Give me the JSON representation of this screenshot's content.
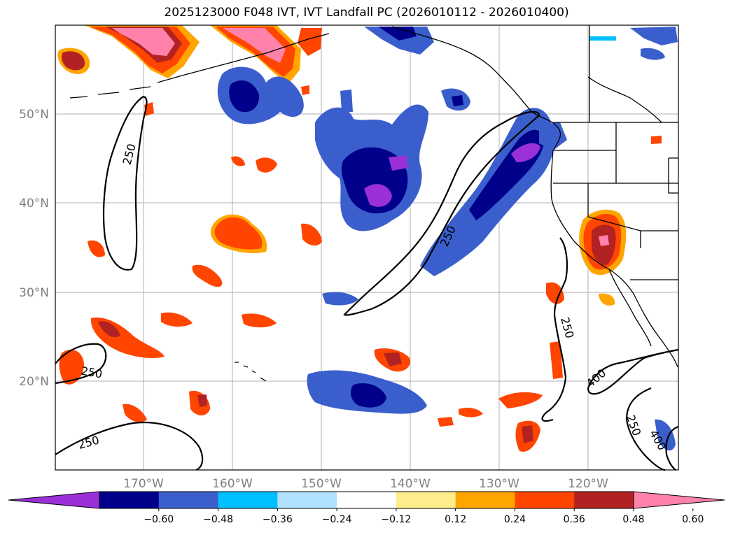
{
  "title": "2025123000 F048 IVT, IVT Landfall PC (2026010112 - 2026010400)",
  "map": {
    "lat_ticks": [
      "50°N",
      "40°N",
      "30°N",
      "20°N"
    ],
    "lon_ticks": [
      "170°W",
      "160°W",
      "150°W",
      "140°W",
      "130°W",
      "120°W"
    ],
    "contour_labels": [
      "250",
      "250",
      "250",
      "250",
      "250",
      "250",
      "400",
      "400"
    ]
  },
  "colorbar": {
    "colors": [
      "#9b30d9",
      "#00008b",
      "#3a5fcd",
      "#00bfff",
      "#b0e2ff",
      "#ffffff",
      "#ffec8b",
      "#ffa500",
      "#ff4500",
      "#b22222",
      "#ff82ab"
    ],
    "tick_labels": [
      "−0.60",
      "−0.48",
      "−0.36",
      "−0.24",
      "−0.12",
      "0.12",
      "0.24",
      "0.36",
      "0.48",
      "0.60"
    ]
  }
}
